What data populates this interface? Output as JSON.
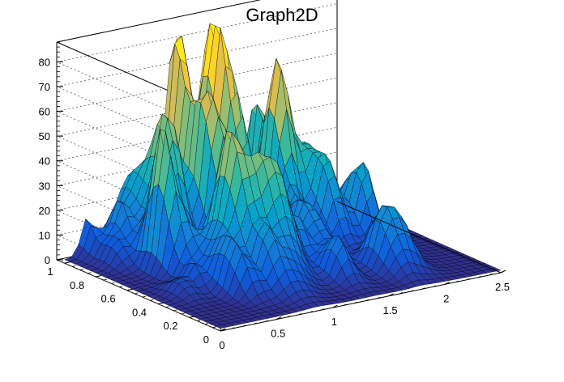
{
  "chart_data": {
    "type": "surface",
    "title": "Graph2D",
    "x_ticks": [
      0,
      0.5,
      1,
      1.5,
      2,
      2.5
    ],
    "y_ticks": [
      0,
      0.2,
      0.4,
      0.6,
      0.8,
      1
    ],
    "z_ticks": [
      0,
      10,
      20,
      30,
      40,
      50,
      60,
      70,
      80
    ],
    "x_tick_labels": [
      "0",
      "0.5",
      "1",
      "1.5",
      "2",
      "2.5"
    ],
    "y_tick_labels": [
      "0",
      "0.2",
      "0.4",
      "0.6",
      "0.8",
      "1"
    ],
    "z_tick_labels": [
      "0",
      "10",
      "20",
      "30",
      "40",
      "50",
      "60",
      "70",
      "80"
    ],
    "xlim": [
      0,
      2.5
    ],
    "ylim": [
      0,
      1.05
    ],
    "zlim": [
      0,
      88
    ],
    "grid": true,
    "colormap": "parula",
    "colormap_stops": [
      "#352a87",
      "#0f5cdd",
      "#1481d6",
      "#06a4ca",
      "#2eb7a4",
      "#87bf77",
      "#d1bb59",
      "#fec832",
      "#f9fb0e"
    ],
    "edge_color": "#000000",
    "peak_z": 84,
    "surface_description_note": null
  }
}
